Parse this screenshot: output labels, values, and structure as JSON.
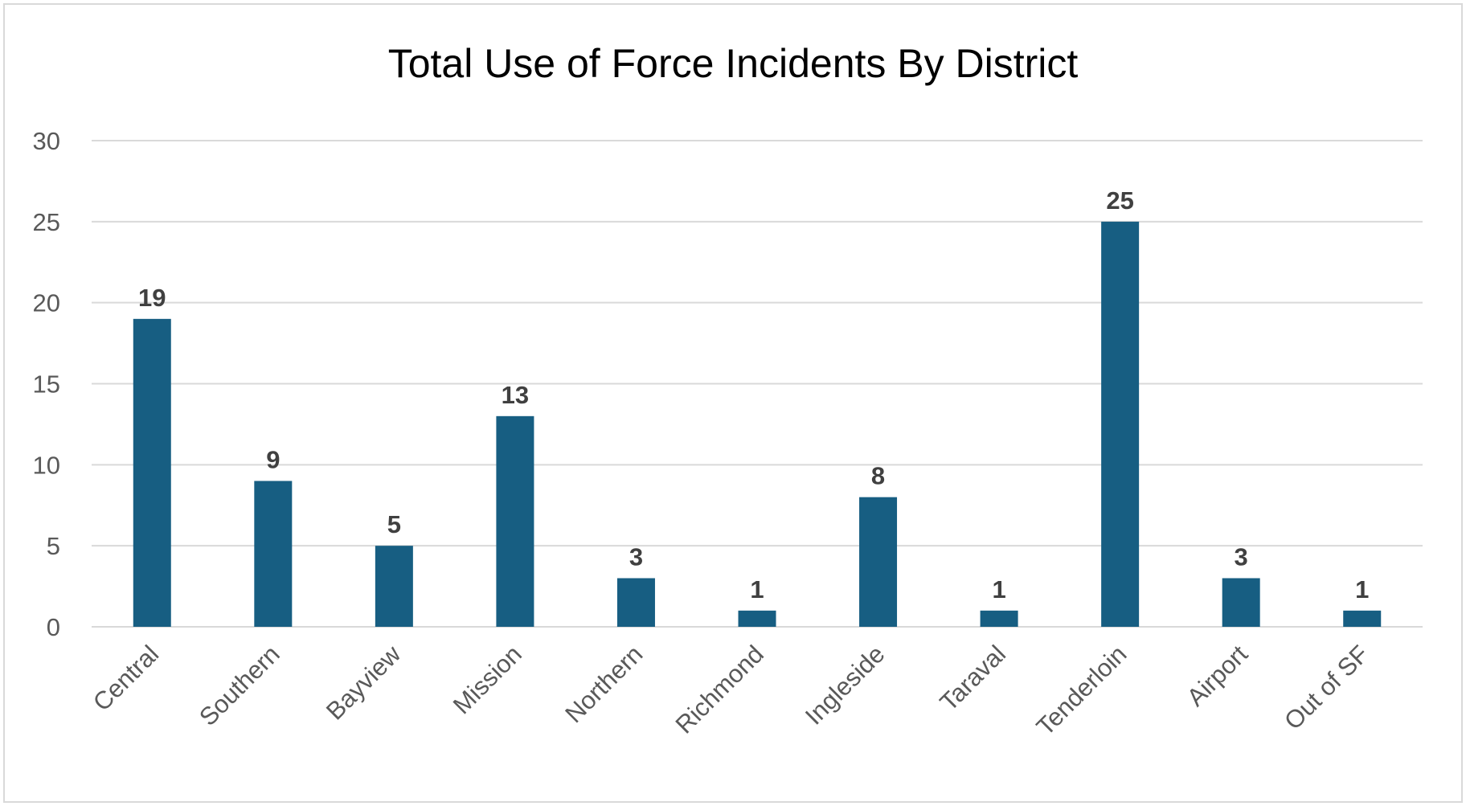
{
  "chart_data": {
    "type": "bar",
    "title": "Total Use of Force Incidents By District",
    "xlabel": "",
    "ylabel": "",
    "categories": [
      "Central",
      "Southern",
      "Bayview",
      "Mission",
      "Northern",
      "Richmond",
      "Ingleside",
      "Taraval",
      "Tenderloin",
      "Airport",
      "Out of SF"
    ],
    "values": [
      19,
      9,
      5,
      13,
      3,
      1,
      8,
      1,
      25,
      3,
      1
    ],
    "ylim": [
      0,
      30
    ],
    "yticks": [
      0,
      5,
      10,
      15,
      20,
      25,
      30
    ],
    "grid": true,
    "legend": "none",
    "data_labels": true,
    "colors": {
      "bar": "#175E82",
      "grid": "#D9D9D9",
      "text": "#595959",
      "title": "#000000",
      "label": "#404040",
      "border": "#D9D9D9"
    }
  }
}
